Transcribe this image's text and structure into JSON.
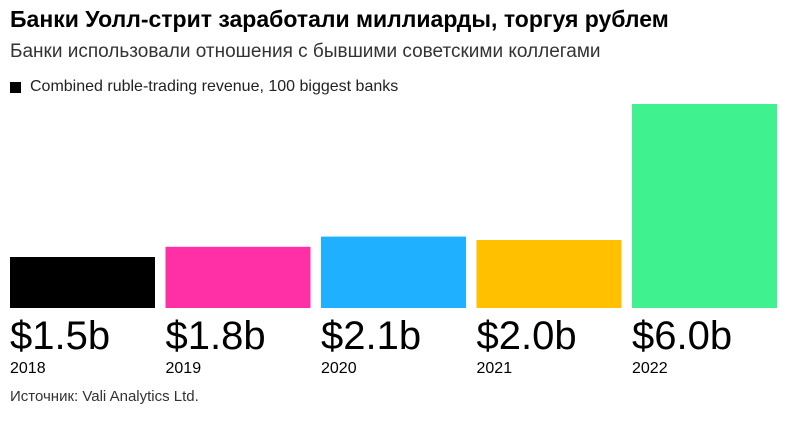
{
  "header": {
    "title": "Банки Уолл-стрит заработали миллиарды, торгуя рублем",
    "subtitle": "Банки использовали отношения с бывшими советскими коллегами"
  },
  "legend": {
    "label": "Combined ruble-trading revenue, 100 biggest banks",
    "color": "#000000"
  },
  "source": "Источник: Vali Analytics Ltd.",
  "chart_data": {
    "type": "bar",
    "title": "Банки Уолл-стрит заработали миллиарды, торгуя рублем",
    "subtitle": "Банки использовали отношения с бывшими советскими коллегами",
    "categories": [
      "2018",
      "2019",
      "2020",
      "2021",
      "2022"
    ],
    "values": [
      1.5,
      1.8,
      2.1,
      2.0,
      6.0
    ],
    "value_labels": [
      "$1.5b",
      "$1.8b",
      "$2.1b",
      "$2.0b",
      "$6.0b"
    ],
    "colors": [
      "#000000",
      "#ff2fa6",
      "#1fb1ff",
      "#ffc000",
      "#3ff28f"
    ],
    "unit": "billion USD",
    "xlabel": "",
    "ylabel": "",
    "ylim": [
      0,
      6.0
    ],
    "grid": false,
    "legend": [
      {
        "name": "Combined ruble-trading revenue, 100 biggest banks",
        "color": "#000000"
      }
    ]
  }
}
